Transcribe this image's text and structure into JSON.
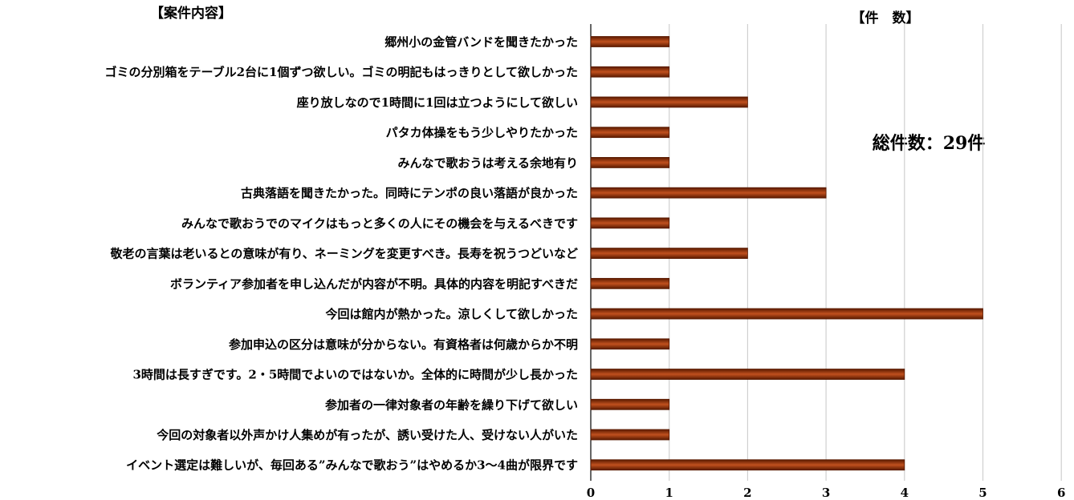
{
  "headers": {
    "left": "【案件内容】",
    "right": "【件　数】"
  },
  "total_label": "総件数：29件",
  "colors": {
    "bar_dark": "#5a1a00",
    "bar_mid": "#c0501e",
    "grid": "#cfcfcf",
    "axis": "#000000"
  },
  "chart_data": {
    "type": "bar",
    "orientation": "horizontal",
    "categories": [
      "郷州小の金管バンドを聞きたかった",
      "ゴミの分別箱をテーブル2台に1個ずつ欲しい。ゴミの明記もはっきりとして欲しかった",
      "座り放しなので1時間に1回は立つようにして欲しい",
      "パタカ体操をもう少しやりたかった",
      "みんなで歌おうは考える余地有り",
      "古典落語を聞きたかった。同時にテンポの良い落語が良かった",
      "みんなで歌おうでのマイクはもっと多くの人にその機会を与えるべきです",
      "敬老の言葉は老いるとの意味が有り、ネーミングを変更すべき。長寿を祝うつどいなど",
      "ボランティア参加者を申し込んだが内容が不明。具体的内容を明記すべきだ",
      "今回は館内が熱かった。涼しくして欲しかった",
      "参加申込の区分は意味が分からない。有資格者は何歳からか不明",
      "3時間は長すぎです。2・5時間でよいのではないか。全体的に時間が少し長かった",
      "参加者の一律対象者の年齢を繰り下げて欲しい",
      "今回の対象者以外声かけ人集めが有ったが、誘い受けた人、受けない人がいた",
      "イベント選定は難しいが、毎回ある”みんなで歌おう”はやめるか3～4曲が限界です"
    ],
    "values": [
      1,
      1,
      2,
      1,
      1,
      3,
      1,
      2,
      1,
      5,
      1,
      4,
      1,
      1,
      4
    ],
    "xlim": [
      0,
      6
    ],
    "xticks": [
      "0",
      "1",
      "2",
      "3",
      "4",
      "5",
      "6"
    ],
    "grid": true
  }
}
